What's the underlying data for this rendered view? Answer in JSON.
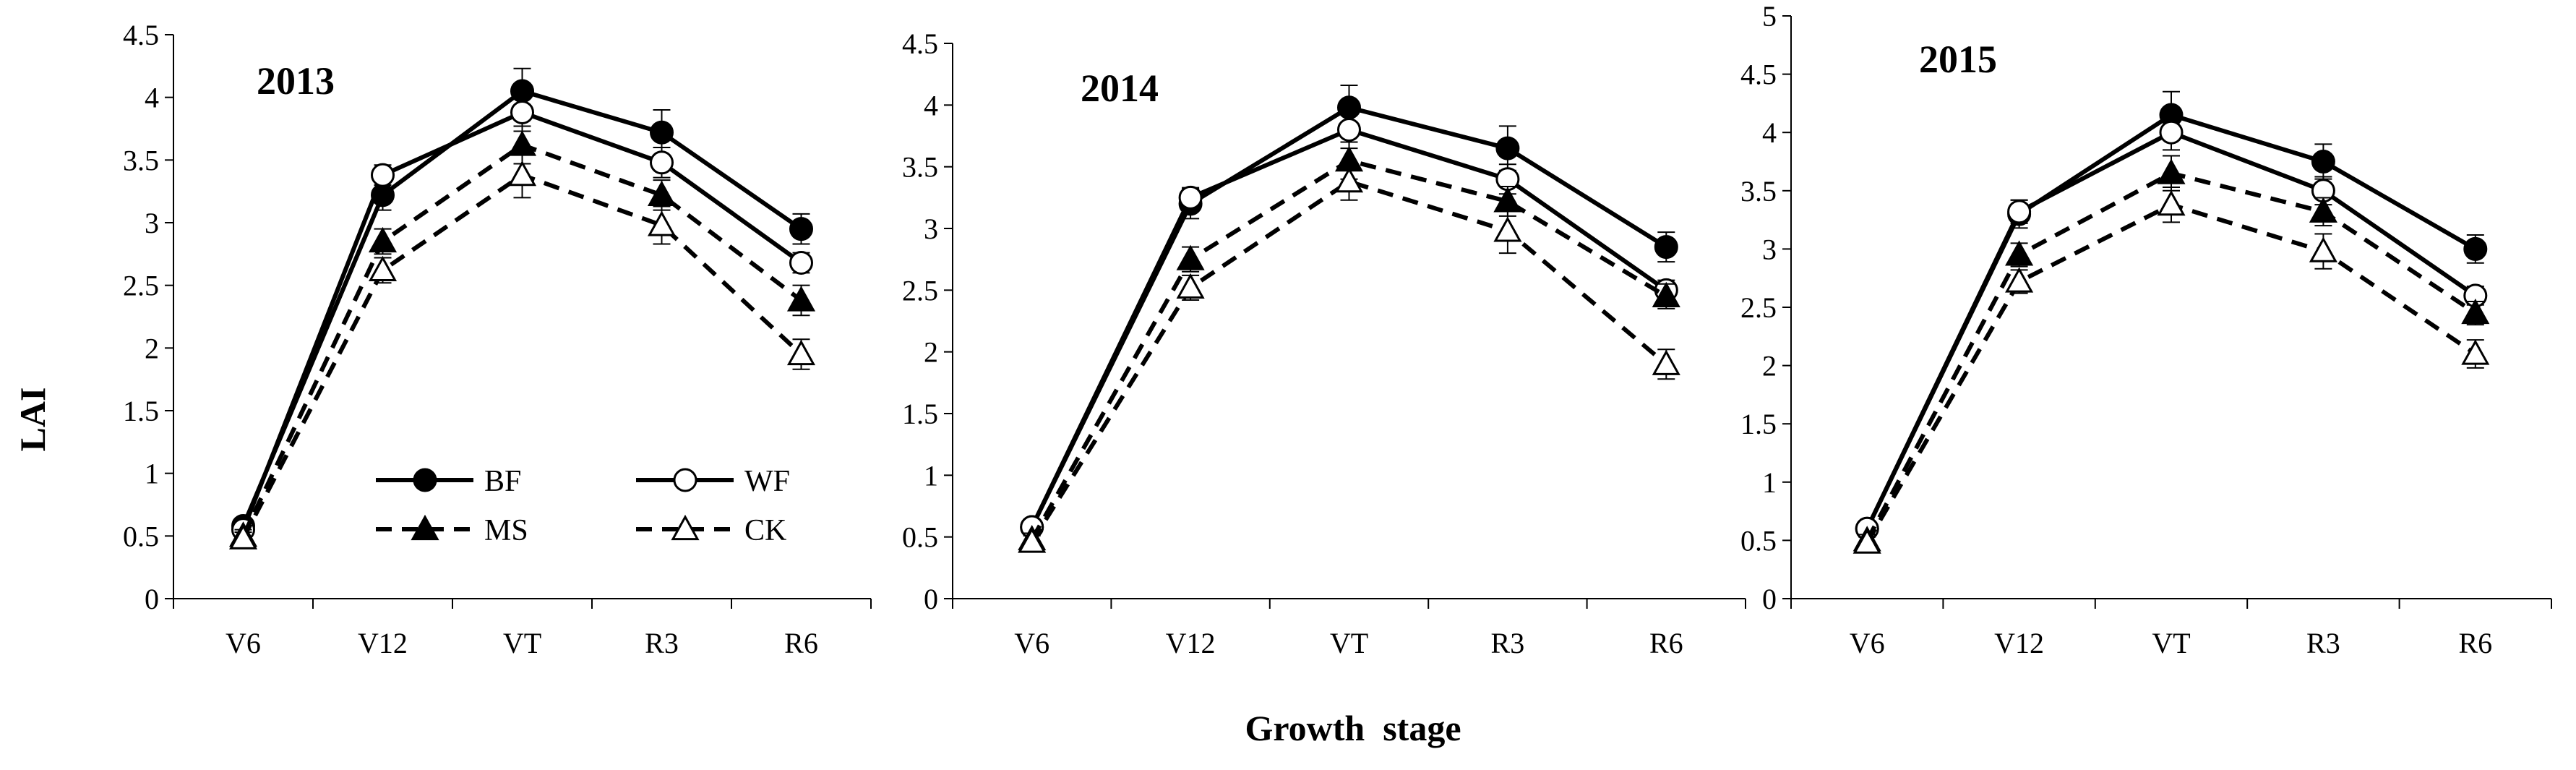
{
  "figure": {
    "ylabel": "LAI",
    "xlabel": "Growth  stage"
  },
  "legend": [
    {
      "series": "BF",
      "label": "BF"
    },
    {
      "series": "WF",
      "label": "WF"
    },
    {
      "series": "MS",
      "label": "MS"
    },
    {
      "series": "CK",
      "label": "CK"
    }
  ],
  "chart_data": [
    {
      "type": "line",
      "title": "2013",
      "categories": [
        "V6",
        "V12",
        "VT",
        "R3",
        "R6"
      ],
      "xlabel": "Growth  stage",
      "ylabel": "LAI",
      "ylim": [
        0,
        4.5
      ],
      "yticks": [
        "0",
        "0.5",
        "1",
        "1.5",
        "2",
        "2.5",
        "3",
        "3.5",
        "4",
        "4.5"
      ],
      "series": [
        {
          "name": "BF",
          "values": [
            0.58,
            3.22,
            4.05,
            3.72,
            2.95
          ],
          "errors": [
            0.05,
            0.12,
            0.18,
            0.18,
            0.12
          ],
          "line": "solid",
          "marker": "filled-circle"
        },
        {
          "name": "WF",
          "values": [
            0.55,
            3.38,
            3.88,
            3.48,
            2.68
          ],
          "errors": [
            0.05,
            0.08,
            0.15,
            0.12,
            0.08
          ],
          "line": "solid",
          "marker": "open-circle"
        },
        {
          "name": "MS",
          "values": [
            0.5,
            2.85,
            3.62,
            3.22,
            2.38
          ],
          "errors": [
            0.05,
            0.1,
            0.15,
            0.12,
            0.12
          ],
          "line": "dashed",
          "marker": "filled-triangle"
        },
        {
          "name": "CK",
          "values": [
            0.48,
            2.62,
            3.38,
            2.98,
            1.95
          ],
          "errors": [
            0.05,
            0.1,
            0.18,
            0.15,
            0.12
          ],
          "line": "dashed",
          "marker": "open-triangle"
        }
      ]
    },
    {
      "type": "line",
      "title": "2014",
      "categories": [
        "V6",
        "V12",
        "VT",
        "R3",
        "R6"
      ],
      "xlabel": "Growth  stage",
      "ylabel": "LAI",
      "ylim": [
        0,
        4.5
      ],
      "yticks": [
        "0",
        "0.5",
        "1",
        "1.5",
        "2",
        "2.5",
        "3",
        "3.5",
        "4",
        "4.5"
      ],
      "series": [
        {
          "name": "BF",
          "values": [
            0.58,
            3.2,
            3.98,
            3.65,
            2.85
          ],
          "errors": [
            0.05,
            0.12,
            0.18,
            0.18,
            0.12
          ],
          "line": "solid",
          "marker": "filled-circle"
        },
        {
          "name": "WF",
          "values": [
            0.58,
            3.25,
            3.8,
            3.4,
            2.5
          ],
          "errors": [
            0.05,
            0.08,
            0.15,
            0.12,
            0.08
          ],
          "line": "solid",
          "marker": "open-circle"
        },
        {
          "name": "MS",
          "values": [
            0.48,
            2.75,
            3.55,
            3.22,
            2.45
          ],
          "errors": [
            0.05,
            0.1,
            0.15,
            0.12,
            0.1
          ],
          "line": "dashed",
          "marker": "filled-triangle"
        },
        {
          "name": "CK",
          "values": [
            0.46,
            2.52,
            3.38,
            2.98,
            1.9
          ],
          "errors": [
            0.05,
            0.1,
            0.15,
            0.18,
            0.12
          ],
          "line": "dashed",
          "marker": "open-triangle"
        }
      ]
    },
    {
      "type": "line",
      "title": "2015",
      "categories": [
        "V6",
        "V12",
        "VT",
        "R3",
        "R6"
      ],
      "xlabel": "Growth  stage",
      "ylabel": "LAI",
      "ylim": [
        0,
        5
      ],
      "yticks": [
        "0",
        "0.5",
        "1",
        "1.5",
        "2",
        "2.5",
        "3",
        "3.5",
        "4",
        "4.5",
        "5"
      ],
      "series": [
        {
          "name": "BF",
          "values": [
            0.6,
            3.3,
            4.15,
            3.75,
            3.0
          ],
          "errors": [
            0.05,
            0.12,
            0.2,
            0.15,
            0.12
          ],
          "line": "solid",
          "marker": "filled-circle"
        },
        {
          "name": "WF",
          "values": [
            0.6,
            3.32,
            4.0,
            3.5,
            2.6
          ],
          "errors": [
            0.05,
            0.1,
            0.15,
            0.12,
            0.08
          ],
          "line": "solid",
          "marker": "open-circle"
        },
        {
          "name": "MS",
          "values": [
            0.5,
            2.95,
            3.65,
            3.32,
            2.45
          ],
          "errors": [
            0.05,
            0.1,
            0.15,
            0.12,
            0.1
          ],
          "line": "dashed",
          "marker": "filled-triangle"
        },
        {
          "name": "CK",
          "values": [
            0.48,
            2.72,
            3.38,
            2.98,
            2.1
          ],
          "errors": [
            0.05,
            0.1,
            0.15,
            0.15,
            0.12
          ],
          "line": "dashed",
          "marker": "open-triangle"
        }
      ]
    }
  ]
}
